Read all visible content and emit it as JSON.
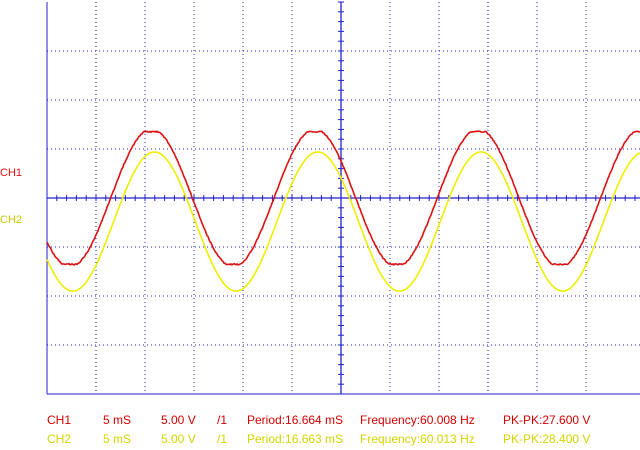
{
  "display": {
    "background": "#ffffff",
    "grid_color": "#2222cc",
    "divisions": {
      "horizontal": 12,
      "vertical": 8
    },
    "channels": [
      {
        "name": "CH1",
        "marker_label": "CH1",
        "color": "#dd1111",
        "frequency_hz": 60.008,
        "period_ms": 16.664,
        "pk_pk_v": 27.6,
        "amplitude_divisions": 2.76,
        "clipped": true
      },
      {
        "name": "CH2",
        "marker_label": "CH2",
        "color": "#eeee00",
        "frequency_hz": 60.013,
        "period_ms": 16.663,
        "pk_pk_v": 28.4,
        "amplitude_divisions": 2.84,
        "clipped": false
      }
    ],
    "time_per_div_ms": 5
  },
  "readouts": [
    {
      "channel": "CH1",
      "time_div": "5  mS",
      "volt_div": "5.00 V",
      "probe": "/1",
      "period": "Period:16.664 mS",
      "frequency": "Frequency:60.008 Hz",
      "pkpk": "PK-PK:27.600 V"
    },
    {
      "channel": "CH2",
      "time_div": "5  mS",
      "volt_div": "5.00 V",
      "probe": "/1",
      "period": "Period:16.663 mS",
      "frequency": "Frequency:60.013 Hz",
      "pkpk": "PK-PK:28.400 V"
    }
  ]
}
